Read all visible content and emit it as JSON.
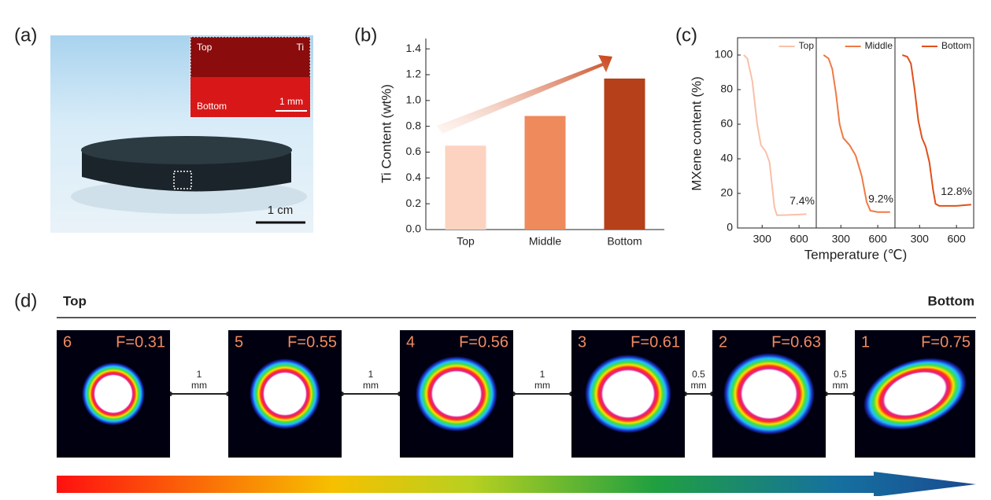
{
  "panel_labels": [
    "(a)",
    "(b)",
    "(c)",
    "(d)"
  ],
  "photo": {
    "inset_labels": {
      "top": "Top",
      "element": "Ti",
      "bottom": "Bottom",
      "scale": "1 mm"
    },
    "scale_bar": "1 cm"
  },
  "chart_data": [
    {
      "type": "bar",
      "ylabel": "Ti Content (wt%)",
      "categories": [
        "Top",
        "Middle",
        "Bottom"
      ],
      "values": [
        0.65,
        0.88,
        1.17
      ],
      "colors": [
        "#fcd3c0",
        "#ee8a5c",
        "#b5401a"
      ],
      "ylim": [
        0,
        1.48
      ],
      "yticks": [
        {
          "value": 0,
          "label": "0.0"
        },
        0.2,
        0.4,
        0.6,
        0.8,
        {
          "value": 1,
          "label": "1.0"
        },
        1.2,
        1.4
      ]
    },
    {
      "type": "line",
      "ylabel": "MXene content (%)",
      "ylim": [
        0,
        110
      ],
      "yticks": [
        0,
        20,
        40,
        60,
        80,
        100
      ],
      "xlim": [
        100,
        740
      ],
      "xticks": [
        300,
        600
      ],
      "annotation": "7.4%",
      "x": [
        150,
        180,
        220,
        260,
        290,
        330,
        360,
        380,
        400,
        420,
        500,
        600,
        660
      ],
      "series": [
        {
          "name": "Top",
          "color": "#f9c0a8",
          "values": [
            100,
            98,
            85,
            60,
            48,
            44,
            38,
            25,
            12,
            7.4,
            7.5,
            7.8,
            8
          ]
        }
      ]
    },
    {
      "type": "line",
      "xlabel": "Temperature (℃)",
      "ylim": [
        0,
        110
      ],
      "xlim": [
        100,
        740
      ],
      "xticks": [
        300,
        600
      ],
      "annotation": "9.2%",
      "x": [
        160,
        200,
        230,
        260,
        290,
        320,
        370,
        420,
        470,
        510,
        540,
        600,
        700
      ],
      "series": [
        {
          "name": "Middle",
          "color": "#ef7a45",
          "values": [
            100,
            98,
            92,
            78,
            60,
            52,
            48,
            42,
            30,
            15,
            10,
            9.2,
            9.2
          ]
        }
      ]
    },
    {
      "type": "line",
      "ylim": [
        0,
        110
      ],
      "xlim": [
        100,
        740
      ],
      "xticks": [
        300,
        600
      ],
      "annotation": "12.8%",
      "x": [
        160,
        200,
        230,
        260,
        290,
        320,
        350,
        380,
        410,
        430,
        460,
        600,
        720
      ],
      "series": [
        {
          "name": "Bottom",
          "color": "#e0501a",
          "values": [
            100,
            99,
            95,
            80,
            62,
            52,
            47,
            38,
            22,
            14,
            12.8,
            12.8,
            13.5
          ]
        }
      ]
    }
  ],
  "beam": {
    "start_label": "Top",
    "end_label": "Bottom",
    "profiles": [
      {
        "index": "6",
        "label": "F=0.31"
      },
      {
        "index": "5",
        "label": "F=0.55"
      },
      {
        "index": "4",
        "label": "F=0.56"
      },
      {
        "index": "3",
        "label": "F=0.61"
      },
      {
        "index": "2",
        "label": "F=0.63"
      },
      {
        "index": "1",
        "label": "F=0.75"
      }
    ],
    "spacings": [
      {
        "distance": "1",
        "unit": "mm"
      },
      {
        "distance": "1",
        "unit": "mm"
      },
      {
        "distance": "1",
        "unit": "mm"
      },
      {
        "distance": "0.5",
        "unit": "mm"
      },
      {
        "distance": "0.5",
        "unit": "mm"
      }
    ]
  }
}
